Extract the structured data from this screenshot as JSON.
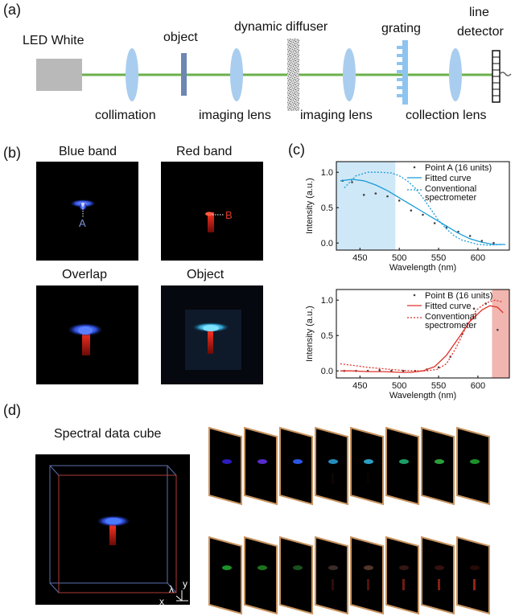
{
  "panels": {
    "a": "(a)",
    "b": "(b)",
    "c": "(c)",
    "d": "(d)"
  },
  "setup": {
    "led": "LED White",
    "object": "object",
    "diffuser": "dynamic diffuser",
    "grating": "grating",
    "detector_line1": "line",
    "detector_line2": "detector",
    "collimation": "collimation",
    "imaging_lens_1": "imaging lens",
    "imaging_lens_2": "imaging lens",
    "collection_lens": "collection lens"
  },
  "images": {
    "blue_band": "Blue band",
    "red_band": "Red band",
    "overlap": "Overlap",
    "object": "Object",
    "point_a": "A",
    "point_b": "B"
  },
  "cube": {
    "title": "Spectral data cube",
    "axis_lambda": "λ",
    "axis_y": "y",
    "axis_x": "x"
  },
  "colors": {
    "blue_curve": "#1a9bd7",
    "red_curve": "#e0322a",
    "blue_band_fill": "#cfe8f7",
    "red_band_fill": "#f2b6b0",
    "beam": "#6ab04c",
    "lens": "#a9cdee",
    "frame_border": "#c8935f"
  },
  "chart_data": [
    {
      "type": "scatter",
      "title": "",
      "xlabel": "Wavelength (nm)",
      "ylabel": "Intensity (a.u.)",
      "xlim": [
        420,
        640
      ],
      "ylim": [
        -0.1,
        1.15
      ],
      "xticks": [
        450,
        500,
        550,
        600
      ],
      "yticks": [
        0.0,
        0.5,
        1.0
      ],
      "xtick_labels": [
        "450",
        "500",
        "550",
        "600"
      ],
      "ytick_labels": [
        "0.0",
        "0.5",
        "1.0"
      ],
      "highlight_band": [
        420,
        495
      ],
      "legend": [
        "Point A (16 units)",
        "Fitted curve",
        "Conventional",
        "spectrometer"
      ],
      "series": [
        {
          "name": "Point A (16 units)",
          "style": "points",
          "x": [
            428,
            440,
            455,
            470,
            485,
            500,
            515,
            530,
            545,
            560,
            575,
            590,
            605,
            620
          ],
          "y": [
            0.88,
            0.86,
            0.68,
            0.7,
            0.66,
            0.6,
            0.46,
            0.4,
            0.28,
            0.22,
            0.16,
            0.1,
            0.03,
            0.0
          ]
        },
        {
          "name": "Fitted curve",
          "style": "solid",
          "x": [
            425,
            440,
            455,
            470,
            485,
            500,
            515,
            530,
            545,
            560,
            575,
            590,
            605,
            620,
            635
          ],
          "y": [
            0.88,
            0.9,
            0.88,
            0.82,
            0.74,
            0.64,
            0.54,
            0.44,
            0.34,
            0.24,
            0.14,
            0.06,
            0.01,
            -0.02,
            -0.02
          ]
        },
        {
          "name": "Conventional spectrometer",
          "style": "dotted",
          "x": [
            430,
            445,
            460,
            475,
            490,
            500,
            510,
            520,
            530,
            540,
            550,
            560,
            570,
            580,
            590,
            600,
            615,
            630
          ],
          "y": [
            0.78,
            0.95,
            1.0,
            1.0,
            0.99,
            0.95,
            0.88,
            0.78,
            0.64,
            0.48,
            0.32,
            0.2,
            0.1,
            0.04,
            0.01,
            -0.02,
            -0.03,
            -0.02
          ]
        }
      ]
    },
    {
      "type": "scatter",
      "title": "",
      "xlabel": "Wavelength (nm)",
      "ylabel": "Intensity (a.u.)",
      "xlim": [
        420,
        640
      ],
      "ylim": [
        -0.1,
        1.15
      ],
      "xticks": [
        450,
        500,
        550,
        600
      ],
      "yticks": [
        0.0,
        0.5,
        1.0
      ],
      "xtick_labels": [
        "450",
        "500",
        "550",
        "600"
      ],
      "ytick_labels": [
        "0.0",
        "0.5",
        "1.0"
      ],
      "highlight_band": [
        618,
        640
      ],
      "legend": [
        "Point B (16 units)",
        "Fitted curve",
        "Conventional",
        "spectrometer"
      ],
      "series": [
        {
          "name": "Point B (16 units)",
          "style": "points",
          "x": [
            430,
            445,
            460,
            475,
            490,
            505,
            520,
            535,
            550,
            565,
            580,
            595,
            610,
            625
          ],
          "y": [
            0.0,
            0.0,
            0.0,
            0.01,
            0.0,
            0.0,
            0.0,
            0.02,
            0.05,
            0.2,
            0.52,
            0.88,
            0.95,
            0.58
          ]
        },
        {
          "name": "Fitted curve",
          "style": "solid",
          "x": [
            425,
            440,
            460,
            480,
            500,
            515,
            530,
            545,
            560,
            575,
            590,
            605,
            615,
            625,
            632
          ],
          "y": [
            0.0,
            0.0,
            -0.01,
            -0.01,
            -0.02,
            -0.02,
            0.0,
            0.06,
            0.22,
            0.46,
            0.7,
            0.86,
            0.92,
            0.9,
            0.82
          ]
        },
        {
          "name": "Conventional spectrometer",
          "style": "dotted",
          "x": [
            425,
            440,
            460,
            480,
            500,
            520,
            535,
            548,
            560,
            572,
            585,
            598,
            610,
            622,
            632
          ],
          "y": [
            0.1,
            0.08,
            0.05,
            0.03,
            0.01,
            0.0,
            0.0,
            0.02,
            0.1,
            0.32,
            0.62,
            0.86,
            0.96,
            1.0,
            0.97
          ]
        }
      ]
    }
  ]
}
